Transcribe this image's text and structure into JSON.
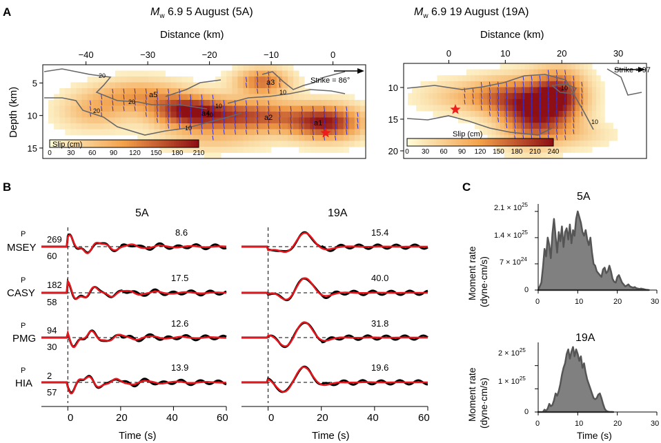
{
  "colors": {
    "slip_low": "#fefbd6",
    "slip_mid": "#f3a04a",
    "slip_high": "#8e0f14",
    "contour": "#676767",
    "arrow": "#2e2fd8",
    "observed": "#000000",
    "synthetic": "#e8161c",
    "moment_fill": "#808080",
    "moment_edge": "#555555",
    "epicenter": "#ef1c1c"
  },
  "panel_a": {
    "letter": "A",
    "maps": [
      {
        "title_mw": "M",
        "title_sub": "w",
        "title_rest": " 6.9 5 August (5A)",
        "xlabel": "Distance (km)",
        "ylabel": "Depth (km)",
        "x_ticks": [
          "−40",
          "−30",
          "−20",
          "−10",
          "0"
        ],
        "y_ticks": [
          "5",
          "10",
          "15"
        ],
        "strike_label": "Strike = 86°",
        "colorbar_label": "Slip (cm)",
        "colorbar_ticks": [
          "0",
          "30",
          "60",
          "90",
          "120",
          "150",
          "180",
          "210"
        ],
        "contour_labels": [
          "20",
          "20",
          "20",
          "10",
          "10",
          "10",
          "10"
        ],
        "asperity_labels": [
          "a1",
          "a2",
          "a3",
          "a4",
          "a5"
        ]
      },
      {
        "title_mw": "M",
        "title_sub": "w",
        "title_rest": " 6.9 19 August (19A)",
        "xlabel": "Distance (km)",
        "x_ticks": [
          "0",
          "10",
          "20",
          "30"
        ],
        "y_ticks": [
          "10",
          "15",
          "20"
        ],
        "strike_label": "Strike = 97",
        "colorbar_label": "Slip (cm)",
        "colorbar_ticks": [
          "0",
          "30",
          "60",
          "90",
          "120",
          "150",
          "180",
          "210",
          "240"
        ],
        "contour_labels": [
          "10",
          "10"
        ]
      }
    ]
  },
  "panel_b": {
    "letter": "B",
    "column_titles": [
      "5A",
      "19A"
    ],
    "xlabel": "Time (s)",
    "x_ticks": [
      "0",
      "20",
      "40",
      "60"
    ],
    "phase": "P",
    "stations": [
      {
        "name": "MSEY",
        "azimuth": "269",
        "distance": "60",
        "amp_5a": "8.6",
        "amp_19a": "15.4"
      },
      {
        "name": "CASY",
        "azimuth": "182",
        "distance": "58",
        "amp_5a": "17.5",
        "amp_19a": "40.0"
      },
      {
        "name": "PMG",
        "azimuth": "94",
        "distance": "30",
        "amp_5a": "12.6",
        "amp_19a": "31.8"
      },
      {
        "name": "HIA",
        "azimuth": "2",
        "distance": "57",
        "amp_5a": "13.9",
        "amp_19a": "19.6"
      }
    ]
  },
  "panel_c": {
    "letter": "C",
    "ylabel_1": "Moment rate",
    "ylabel_2": "(dyne·cm/s)",
    "xlabel": "Time (s)",
    "x_ticks": [
      "0",
      "10",
      "20",
      "30"
    ],
    "plots": [
      {
        "title": "5A",
        "y_ticks": [
          "0",
          "7 × 10",
          "1.4 × 10",
          "2.1 × 10"
        ],
        "y_exp": [
          "",
          "24",
          "25",
          "25"
        ]
      },
      {
        "title": "19A",
        "y_ticks": [
          "0",
          "1 × 10",
          "2 × 10"
        ],
        "y_exp": [
          "",
          "25",
          "25"
        ]
      }
    ]
  },
  "chart_data": [
    {
      "type": "area",
      "name": "5A",
      "xlabel": "Time (s)",
      "ylabel": "Moment rate (dyne·cm/s)",
      "xlim": [
        0,
        30
      ],
      "ylim": [
        0,
        2.3e+25
      ],
      "x": [
        0,
        0.8,
        1.2,
        1.6,
        2.0,
        2.4,
        2.8,
        3.2,
        3.6,
        4.0,
        4.4,
        4.8,
        5.2,
        5.6,
        6.0,
        6.4,
        6.8,
        7.2,
        7.6,
        8.0,
        8.4,
        8.8,
        9.2,
        9.6,
        10.0,
        10.4,
        10.8,
        11.2,
        11.6,
        12.0,
        12.4,
        12.8,
        13.2,
        13.6,
        14.0,
        14.4,
        14.8,
        15.2,
        15.6,
        16.0,
        16.4,
        16.8,
        17.2,
        17.6,
        18.0,
        18.4,
        18.8,
        19.2,
        19.6,
        20.0,
        20.4,
        20.8,
        21.2,
        21.6,
        22.0,
        22.4,
        22.8,
        23.2,
        23.6,
        24.0,
        24.4,
        24.8,
        25.2,
        25.6,
        26.0,
        26.4,
        26.8,
        27.2,
        28
      ],
      "values": [
        0,
        2e+24,
        6e+24,
        1.1e+25,
        9e+24,
        1.4e+25,
        1.2e+25,
        8.5e+24,
        1.5e+25,
        1.9e+25,
        1.45e+25,
        1e+25,
        1.55e+25,
        1.3e+25,
        1.7e+25,
        1.15e+25,
        1.55e+25,
        1.65e+25,
        1.35e+25,
        1.75e+25,
        1.25e+25,
        1.6e+25,
        1.45e+25,
        1.9e+25,
        2.1e+25,
        1.95e+25,
        1.8e+25,
        1.55e+25,
        1.45e+25,
        1.6e+25,
        1.35e+25,
        1.2e+25,
        1.4e+25,
        1e+25,
        7e+24,
        6.5e+24,
        5e+24,
        4.5e+24,
        4e+24,
        3.5e+24,
        5.5e+24,
        6e+24,
        4.5e+24,
        5e+24,
        6.5e+24,
        5e+24,
        3e+24,
        2.2e+24,
        2e+24,
        3.5e+24,
        4e+24,
        3e+24,
        2e+24,
        1.5e+24,
        1e+24,
        1.2e+24,
        1.5e+24,
        1e+24,
        8e+23,
        6e+23,
        8e+23,
        5e+23,
        4e+23,
        3e+23,
        4e+23,
        3e+23,
        2e+23,
        1e+23,
        0
      ]
    },
    {
      "type": "area",
      "name": "19A",
      "xlabel": "Time (s)",
      "ylabel": "Moment rate (dyne·cm/s)",
      "xlim": [
        0,
        30
      ],
      "ylim": [
        0,
        3e+25
      ],
      "x": [
        0,
        1.2,
        1.6,
        2.0,
        2.4,
        2.8,
        3.2,
        3.6,
        4.0,
        4.4,
        4.8,
        5.2,
        5.6,
        6.0,
        6.4,
        6.8,
        7.2,
        7.6,
        8.0,
        8.4,
        8.8,
        9.2,
        9.6,
        10.0,
        10.4,
        10.8,
        11.2,
        11.6,
        12.0,
        12.4,
        12.8,
        13.2,
        13.6,
        14.0,
        14.4,
        14.8,
        15.2,
        15.6,
        16.0,
        16.4,
        16.8,
        17.2,
        17.6,
        18.0,
        19
      ],
      "values": [
        0,
        0,
        1e+24,
        5e+23,
        1.5e+24,
        3.5e+24,
        2.5e+24,
        3e+24,
        5e+24,
        8e+24,
        7e+24,
        9e+24,
        1.2e+25,
        1.6e+25,
        1.9e+25,
        2.1e+25,
        2.5e+25,
        2.7e+25,
        2.3e+25,
        2.6e+25,
        2.8e+25,
        2.4e+25,
        2.7e+25,
        2.5e+25,
        2.2e+25,
        2.4e+25,
        1.9e+25,
        2.1e+25,
        1.7e+25,
        1.4e+25,
        1.2e+25,
        1e+25,
        8e+24,
        6e+24,
        5.5e+24,
        6e+24,
        7.5e+24,
        8e+24,
        6e+24,
        3.5e+24,
        1.5e+24,
        5e+23,
        2e+23,
        1e+23,
        0
      ]
    }
  ]
}
